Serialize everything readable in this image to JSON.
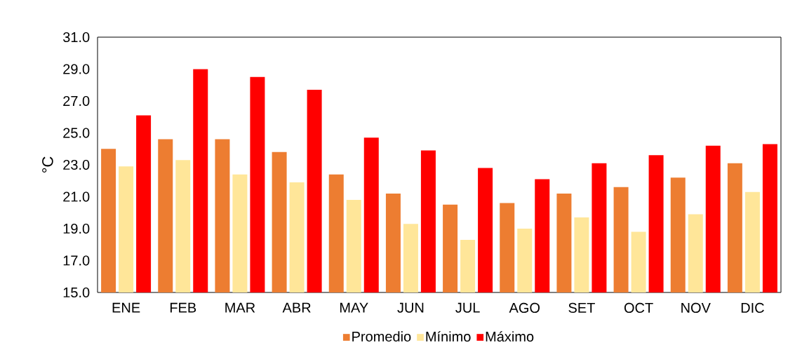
{
  "chart_data": {
    "type": "bar",
    "ylabel": "°C",
    "categories": [
      "ENE",
      "FEB",
      "MAR",
      "ABR",
      "MAY",
      "JUN",
      "JUL",
      "AGO",
      "SET",
      "OCT",
      "NOV",
      "DIC"
    ],
    "series": [
      {
        "name": "Promedio",
        "color": "#ed7d31",
        "values": [
          24.0,
          24.6,
          24.6,
          23.8,
          22.4,
          21.2,
          20.5,
          20.6,
          21.2,
          21.6,
          22.2,
          23.1
        ]
      },
      {
        "name": "Mínimo",
        "color": "#ffe699",
        "values": [
          22.9,
          23.3,
          22.4,
          21.9,
          20.8,
          19.3,
          18.3,
          19.0,
          19.7,
          18.8,
          19.9,
          21.3
        ]
      },
      {
        "name": "Máximo",
        "color": "#ff0000",
        "values": [
          26.1,
          29.0,
          28.5,
          27.7,
          24.7,
          23.9,
          22.8,
          22.1,
          23.1,
          23.6,
          24.2,
          24.3
        ]
      }
    ],
    "ylim": [
      15,
      31
    ],
    "yticks": [
      {
        "value": 15,
        "label": "15.0"
      },
      {
        "value": 17,
        "label": "17.0"
      },
      {
        "value": 19,
        "label": "19.0"
      },
      {
        "value": 21,
        "label": "21.0"
      },
      {
        "value": 23,
        "label": "23.0"
      },
      {
        "value": 25,
        "label": "25.0"
      },
      {
        "value": 27,
        "label": "27.0"
      },
      {
        "value": 29,
        "label": "29.0"
      },
      {
        "value": 31,
        "label": "31.0"
      }
    ],
    "grid": false,
    "legend": "bottom"
  }
}
